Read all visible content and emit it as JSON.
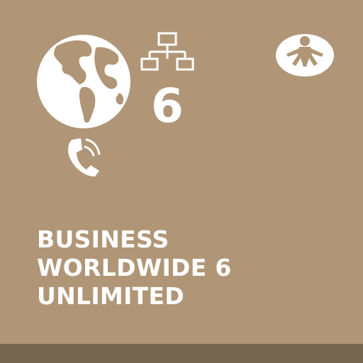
{
  "product": {
    "number": "6",
    "title_lines": [
      "BUSINESS",
      "WORLDWIDE 6",
      "UNLIMITED"
    ]
  },
  "icons": [
    "globe-icon",
    "network-icon",
    "phone-icon",
    "traveler-icon"
  ],
  "colors": {
    "background": "#b09677",
    "footer": "#77664f",
    "foreground": "#ffffff"
  }
}
